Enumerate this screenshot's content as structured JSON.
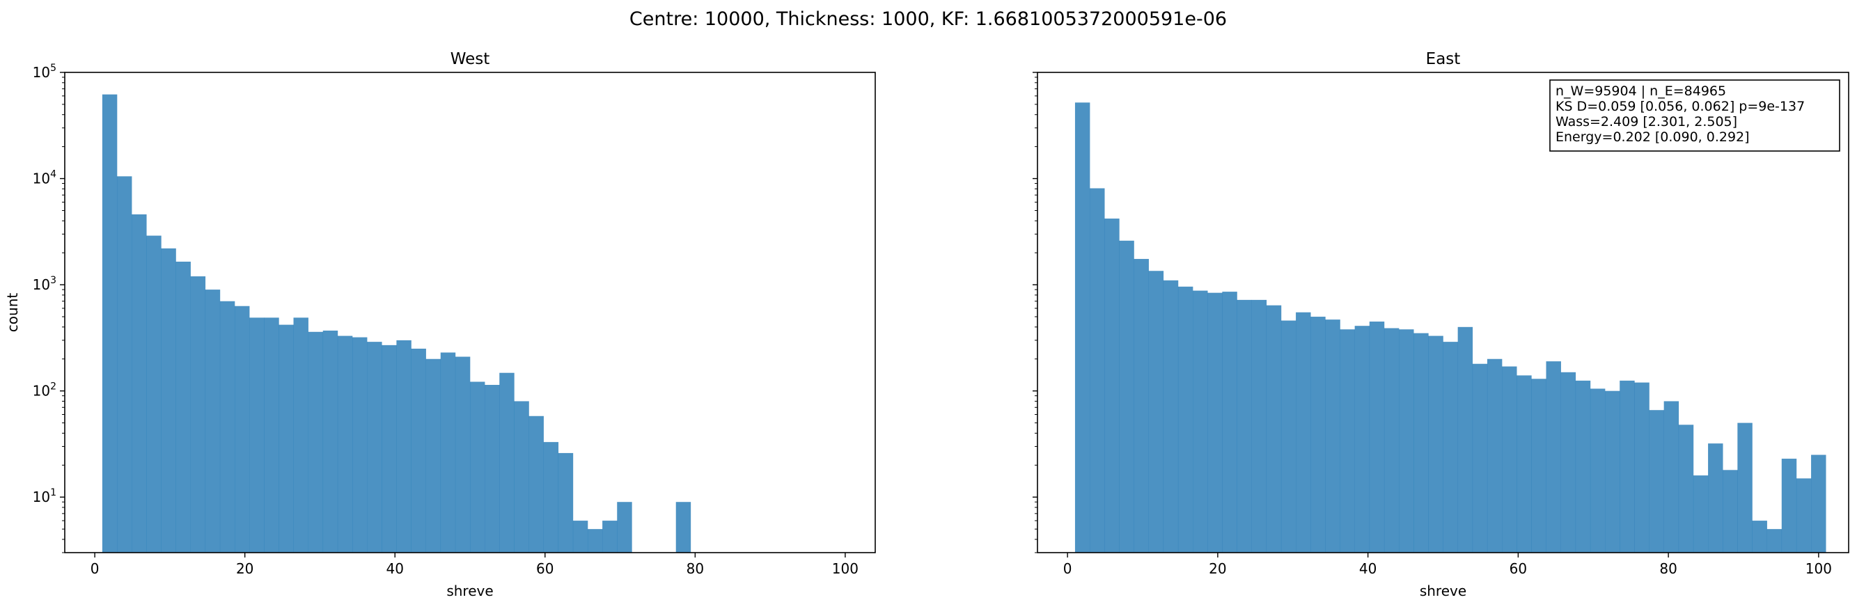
{
  "suptitle": "Centre: 10000, Thickness: 1000, KF: 1.6681005372000591e-06",
  "colors": {
    "bar": "#1f77b4",
    "bar_opacity": 0.8,
    "axes": "#000000",
    "background": "#ffffff"
  },
  "chart_data": [
    {
      "type": "bar",
      "title": "West",
      "xlabel": "shreve",
      "ylabel": "count",
      "yscale": "log",
      "xlim": [
        -4,
        104
      ],
      "ylim": [
        3,
        100000
      ],
      "xticks": [
        0,
        20,
        40,
        60,
        80,
        100
      ],
      "xtick_labels": [
        "0",
        "20",
        "40",
        "60",
        "80",
        "100"
      ],
      "yticks": [
        10,
        100,
        1000,
        10000,
        100000
      ],
      "ytick_labels": [
        "10^1",
        "10^2",
        "10^3",
        "10^4",
        "10^5"
      ],
      "bin_width": 1.96,
      "bin_start": 1,
      "values": [
        62000,
        10500,
        4600,
        2900,
        2200,
        1650,
        1200,
        900,
        700,
        630,
        490,
        490,
        420,
        490,
        360,
        370,
        330,
        320,
        290,
        270,
        300,
        250,
        200,
        230,
        210,
        122,
        114,
        148,
        80,
        58,
        33,
        26,
        6,
        5,
        6,
        9,
        0,
        0,
        0,
        9,
        0,
        0,
        0,
        0,
        0,
        0,
        0,
        0,
        0,
        0
      ],
      "annotation": []
    },
    {
      "type": "bar",
      "title": "East",
      "xlabel": "shreve",
      "ylabel": "",
      "yscale": "log",
      "xlim": [
        -4,
        104
      ],
      "ylim": [
        3,
        100000
      ],
      "xticks": [
        0,
        20,
        40,
        60,
        80,
        100
      ],
      "xtick_labels": [
        "0",
        "20",
        "40",
        "60",
        "80",
        "100"
      ],
      "yticks": [
        10,
        100,
        1000,
        10000,
        100000
      ],
      "ytick_labels": [
        "",
        "",
        "",
        "",
        ""
      ],
      "bin_width": 1.96,
      "bin_start": 1,
      "values": [
        52000,
        8100,
        4200,
        2600,
        1750,
        1350,
        1100,
        960,
        880,
        840,
        860,
        720,
        720,
        640,
        460,
        550,
        500,
        470,
        380,
        410,
        450,
        390,
        380,
        350,
        330,
        290,
        400,
        180,
        200,
        170,
        140,
        130,
        190,
        150,
        125,
        105,
        100,
        125,
        120,
        66,
        80,
        48,
        16,
        32,
        18,
        50,
        6,
        5,
        23,
        15,
        25
      ],
      "annotation": [
        "n_W=95904 | n_E=84965",
        "KS D=0.059 [0.056, 0.062]  p=9e-137",
        "Wass=2.409 [2.301, 2.505]",
        "Energy=0.202 [0.090, 0.292]"
      ]
    }
  ]
}
